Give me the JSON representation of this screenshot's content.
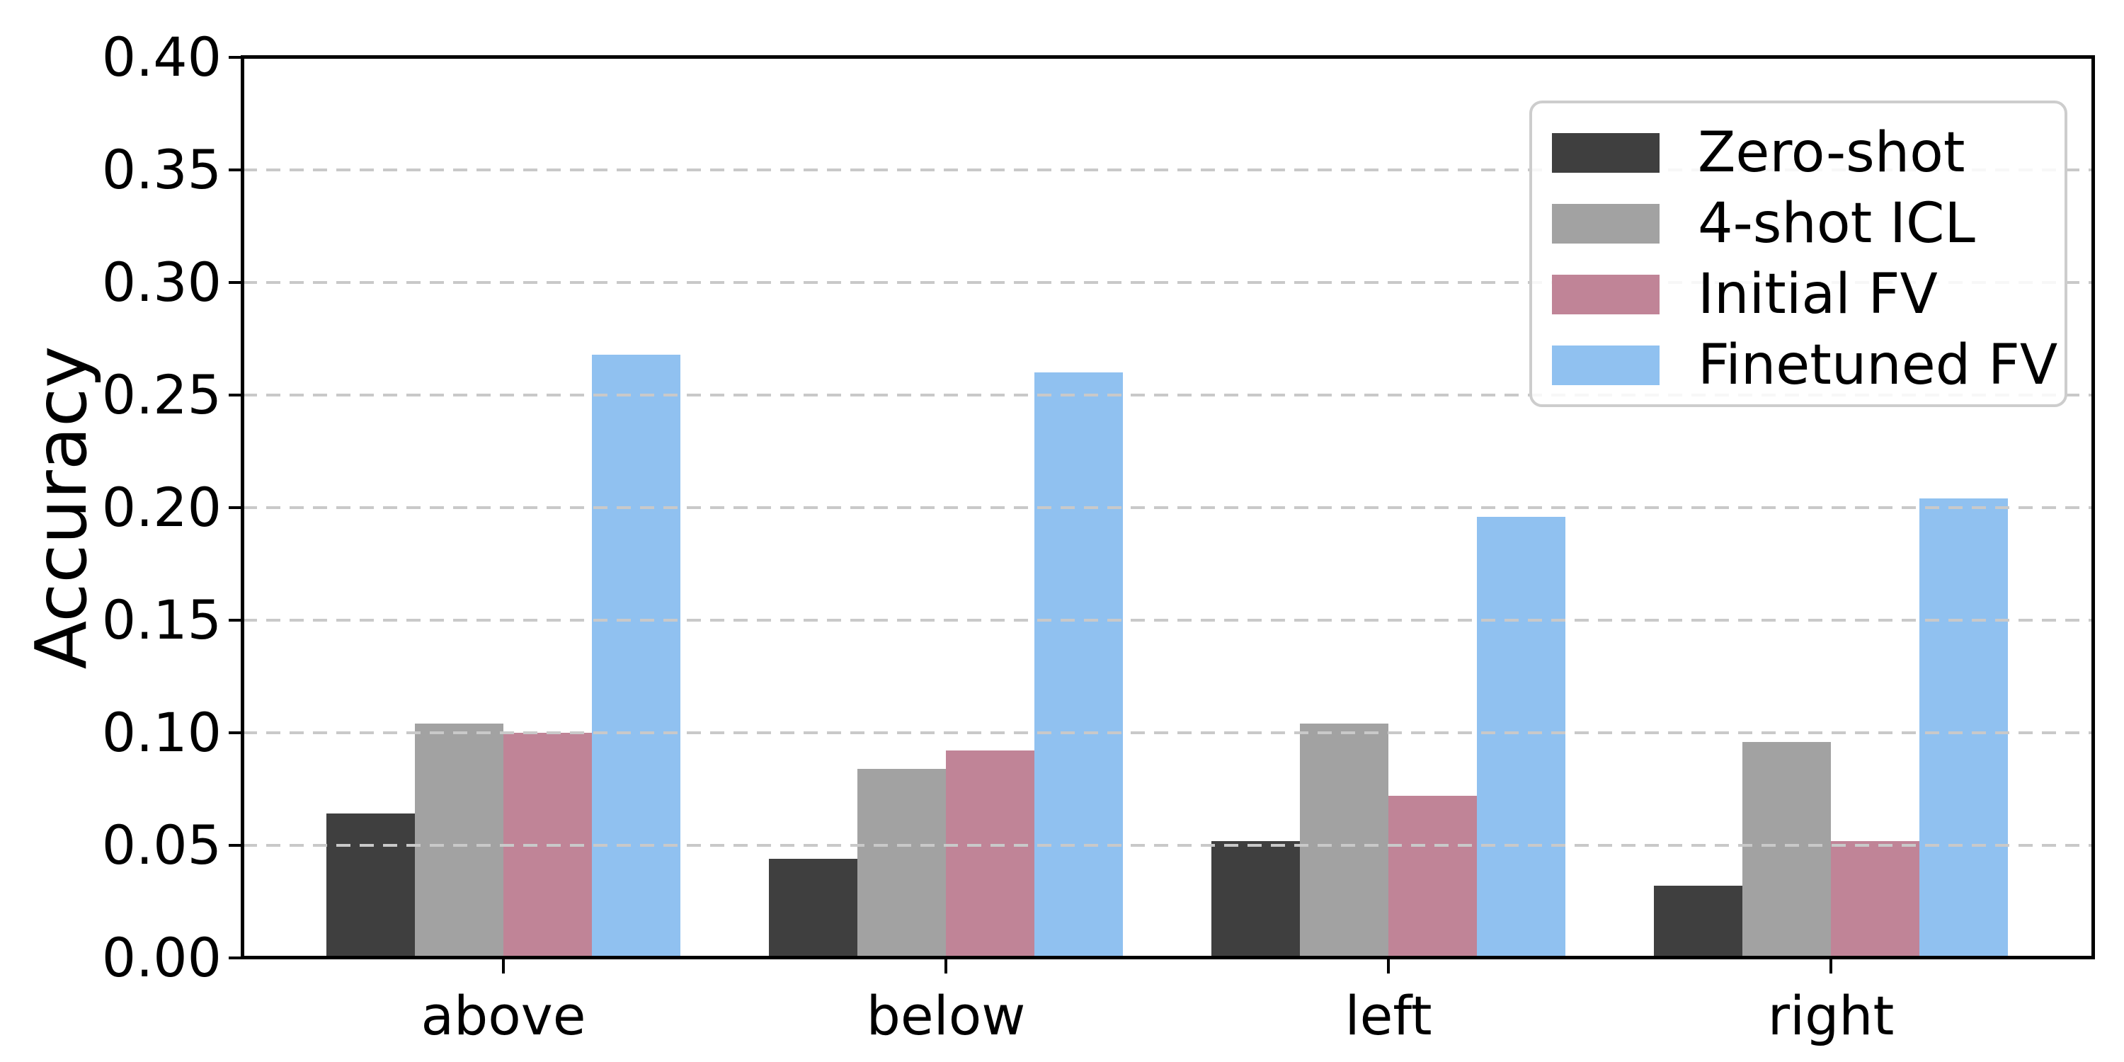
{
  "chart_data": {
    "type": "bar",
    "title": "",
    "xlabel": "",
    "ylabel": "Accuracy",
    "categories": [
      "above",
      "below",
      "left",
      "right"
    ],
    "series": [
      {
        "name": "Zero-shot",
        "color": "#3f3f3f",
        "values": [
          0.064,
          0.044,
          0.052,
          0.032
        ]
      },
      {
        "name": "4-shot ICL",
        "color": "#a2a2a2",
        "values": [
          0.104,
          0.084,
          0.104,
          0.096
        ]
      },
      {
        "name": "Initial FV",
        "color": "#c08497",
        "values": [
          0.1,
          0.092,
          0.072,
          0.052
        ]
      },
      {
        "name": "Finetuned FV",
        "color": "#90c1f0",
        "values": [
          0.268,
          0.26,
          0.196,
          0.204
        ]
      }
    ],
    "ylim": [
      0.0,
      0.4
    ],
    "ytick_labels": [
      "0.00",
      "0.05",
      "0.10",
      "0.15",
      "0.20",
      "0.25",
      "0.30",
      "0.35",
      "0.40"
    ],
    "ytick_values": [
      0.0,
      0.05,
      0.1,
      0.15,
      0.2,
      0.25,
      0.3,
      0.35,
      0.4
    ],
    "grid": "dashed horizontal at each y tick, drawn over bars",
    "grid_color": "#c9c9c9",
    "legend_position": "upper right",
    "legend_entries": [
      "Zero-shot",
      "4-shot ICL",
      "Initial FV",
      "Finetuned FV"
    ],
    "spine_color": "#000000",
    "background_color": "#ffffff"
  }
}
